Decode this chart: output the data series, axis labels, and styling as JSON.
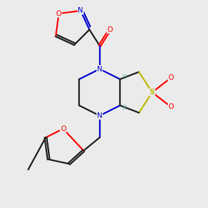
{
  "background_color": "#ebebeb",
  "bond_color": "#1a1a1a",
  "N_color": "#0000cc",
  "O_color": "#ff0000",
  "S_color": "#b8b800",
  "H_color": "#4a9090",
  "figsize": [
    3.0,
    3.0
  ],
  "dpi": 100,
  "xlim": [
    0.8,
    6.5
  ],
  "ylim": [
    0.5,
    7.5
  ]
}
